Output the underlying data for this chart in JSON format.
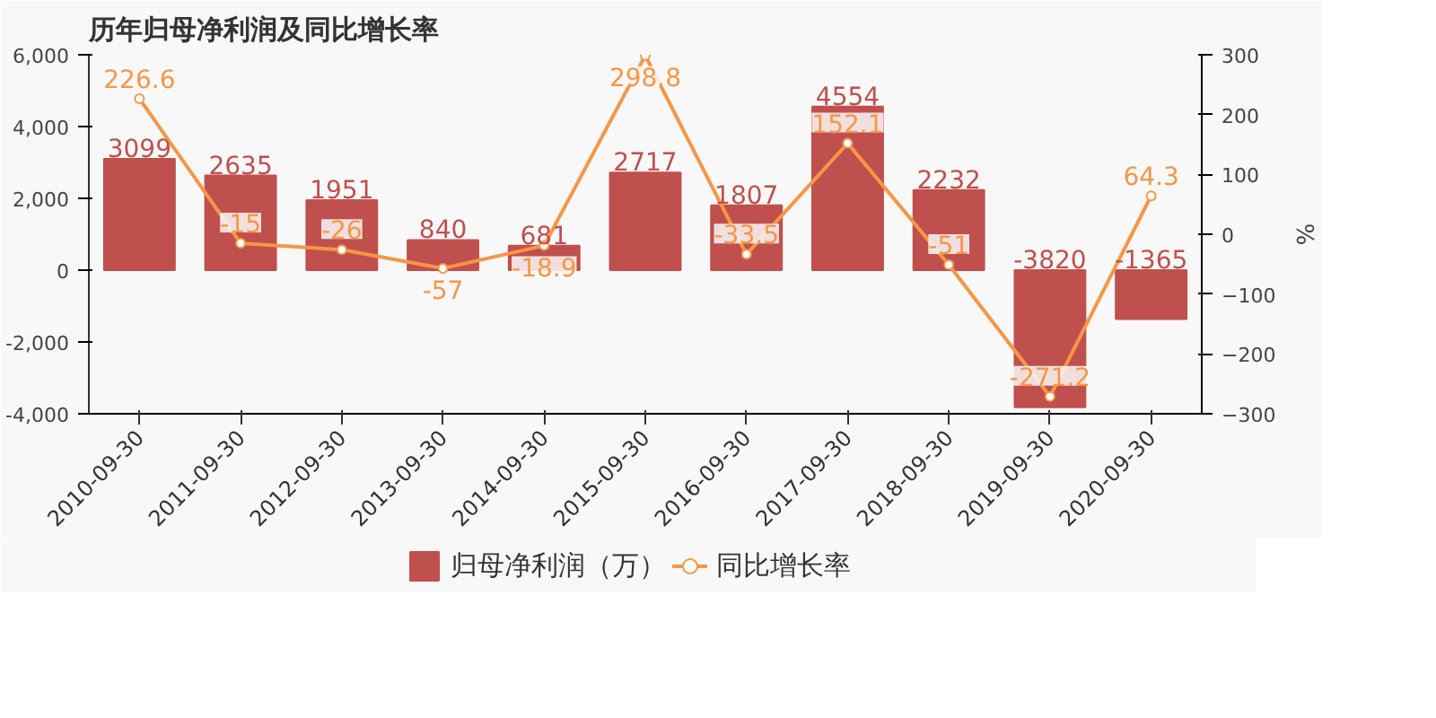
{
  "chart_data": {
    "type": "bar",
    "title": "历年归母净利润及同比增长率",
    "categories": [
      "2010-09-30",
      "2011-09-30",
      "2012-09-30",
      "2013-09-30",
      "2014-09-30",
      "2015-09-30",
      "2016-09-30",
      "2017-09-30",
      "2018-09-30",
      "2019-09-30",
      "2020-09-30"
    ],
    "series": [
      {
        "name": "归母净利润（万）",
        "color": "#c0504d",
        "values": [
          3099,
          2635,
          1951,
          840,
          681,
          2717,
          1807,
          4554,
          2232,
          -3820,
          -1365
        ]
      },
      {
        "name": "同比增长率",
        "type": "line",
        "axis": "y2",
        "color": "#f79646",
        "marker": "circle",
        "values": [
          226.6,
          -15,
          -26,
          -57,
          -18.9,
          298.8,
          -33.5,
          152.1,
          -51,
          -271.2,
          64.3
        ]
      }
    ],
    "ylim": [
      -4000,
      6000
    ],
    "yticks": [
      {
        "value": -4000,
        "label": "-4,000"
      },
      {
        "value": -2000,
        "label": "-2,000"
      },
      0,
      {
        "value": 2000,
        "label": "2,000"
      },
      {
        "value": 4000,
        "label": "4,000"
      },
      {
        "value": 6000,
        "label": "6,000"
      }
    ],
    "y2label": "%",
    "y2lim": [
      -300,
      300
    ],
    "y2ticks": [
      -300,
      -200,
      -100,
      0,
      100,
      200,
      300
    ],
    "data_labels": true,
    "legend": "bottom",
    "grid": false
  }
}
